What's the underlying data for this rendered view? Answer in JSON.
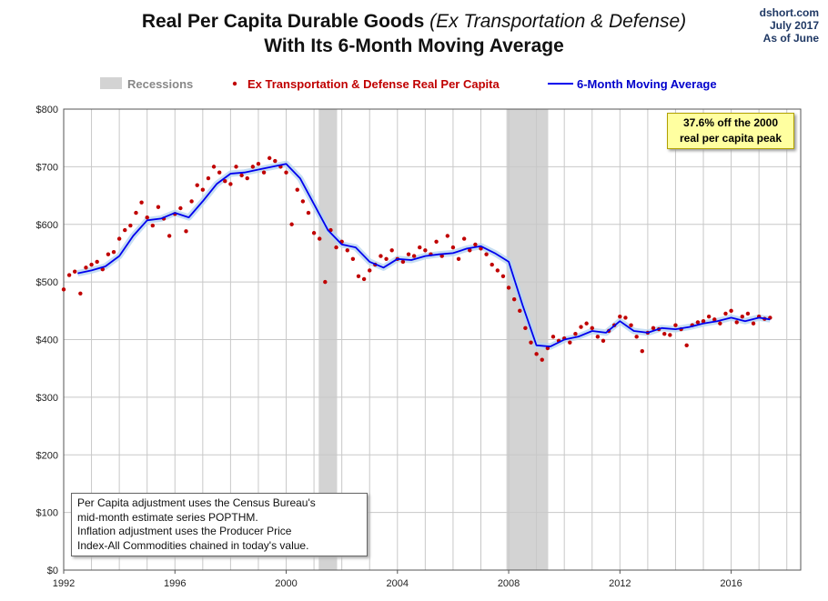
{
  "title": {
    "line1_plain": "Real Per Capita Durable Goods ",
    "line1_italic": "(Ex Transportation  & Defense)",
    "line2": "With Its 6-Month Moving Average"
  },
  "source": {
    "site": "dshort.com",
    "date": "July 2017",
    "as_of": "As of June"
  },
  "callout": {
    "line1": "37.6% off the 2000",
    "line2": "real per capita peak"
  },
  "note": {
    "lines": [
      "Per Capita adjustment uses the Census Bureau's",
      "mid-month estimate series POPTHM.",
      "Inflation adjustment uses the Producer Price",
      "Index-All Commodities chained in today's value."
    ]
  },
  "colors": {
    "dots": "#c00000",
    "line": "#0000ee",
    "recession": "#d3d3d3",
    "grid": "#c8c8c8"
  },
  "chart_data": {
    "type": "line",
    "title": "Real Per Capita Durable Goods (Ex Transportation  & Defense) With Its 6-Month Moving Average",
    "xlim": [
      1992,
      2018.5
    ],
    "ylim": [
      0,
      800
    ],
    "grid": true,
    "legend_position": "top",
    "x_ticks": [
      1992,
      1996,
      2000,
      2004,
      2008,
      2012,
      2016
    ],
    "y_ticks": [
      0,
      100,
      200,
      300,
      400,
      500,
      600,
      700,
      800
    ],
    "y_tick_labels": [
      "$0",
      "$100",
      "$200",
      "$300",
      "$400",
      "$500",
      "$600",
      "$700",
      "$800"
    ],
    "legend": [
      "Recessions",
      "Ex Transportation & Defense Real Per Capita",
      "6-Month Moving Average"
    ],
    "recessions": [
      [
        2001.17,
        2001.83
      ],
      [
        2007.92,
        2009.42
      ]
    ],
    "series": [
      {
        "name": "6-Month Moving Average",
        "style": "line",
        "x": [
          1992.5,
          1993.0,
          1993.5,
          1994.0,
          1994.5,
          1995.0,
          1995.5,
          1996.0,
          1996.5,
          1997.0,
          1997.5,
          1998.0,
          1998.5,
          1999.0,
          1999.5,
          2000.0,
          2000.5,
          2001.0,
          2001.5,
          2002.0,
          2002.5,
          2003.0,
          2003.5,
          2004.0,
          2004.5,
          2005.0,
          2005.5,
          2006.0,
          2006.5,
          2007.0,
          2007.5,
          2008.0,
          2008.5,
          2009.0,
          2009.5,
          2010.0,
          2010.5,
          2011.0,
          2011.5,
          2012.0,
          2012.5,
          2013.0,
          2013.5,
          2014.0,
          2014.5,
          2015.0,
          2015.5,
          2016.0,
          2016.5,
          2017.0,
          2017.4
        ],
        "values": [
          515,
          520,
          527,
          545,
          580,
          607,
          610,
          620,
          612,
          640,
          670,
          688,
          690,
          695,
          700,
          705,
          680,
          635,
          590,
          565,
          560,
          535,
          525,
          540,
          538,
          545,
          548,
          550,
          558,
          562,
          550,
          535,
          460,
          390,
          388,
          400,
          405,
          415,
          412,
          432,
          415,
          412,
          420,
          418,
          422,
          428,
          432,
          438,
          432,
          438,
          435
        ]
      },
      {
        "name": "Ex Transportation & Defense Real Per Capita",
        "style": "dots",
        "x": [
          1992.0,
          1992.2,
          1992.4,
          1992.6,
          1992.8,
          1993.0,
          1993.2,
          1993.4,
          1993.6,
          1993.8,
          1994.0,
          1994.2,
          1994.4,
          1994.6,
          1994.8,
          1995.0,
          1995.2,
          1995.4,
          1995.6,
          1995.8,
          1996.0,
          1996.2,
          1996.4,
          1996.6,
          1996.8,
          1997.0,
          1997.2,
          1997.4,
          1997.6,
          1997.8,
          1998.0,
          1998.2,
          1998.4,
          1998.6,
          1998.8,
          1999.0,
          1999.2,
          1999.4,
          1999.6,
          1999.8,
          2000.0,
          2000.2,
          2000.4,
          2000.6,
          2000.8,
          2001.0,
          2001.2,
          2001.4,
          2001.6,
          2001.8,
          2002.0,
          2002.2,
          2002.4,
          2002.6,
          2002.8,
          2003.0,
          2003.2,
          2003.4,
          2003.6,
          2003.8,
          2004.0,
          2004.2,
          2004.4,
          2004.6,
          2004.8,
          2005.0,
          2005.2,
          2005.4,
          2005.6,
          2005.8,
          2006.0,
          2006.2,
          2006.4,
          2006.6,
          2006.8,
          2007.0,
          2007.2,
          2007.4,
          2007.6,
          2007.8,
          2008.0,
          2008.2,
          2008.4,
          2008.6,
          2008.8,
          2009.0,
          2009.2,
          2009.4,
          2009.6,
          2009.8,
          2010.0,
          2010.2,
          2010.4,
          2010.6,
          2010.8,
          2011.0,
          2011.2,
          2011.4,
          2011.6,
          2011.8,
          2012.0,
          2012.2,
          2012.4,
          2012.6,
          2012.8,
          2013.0,
          2013.2,
          2013.4,
          2013.6,
          2013.8,
          2014.0,
          2014.2,
          2014.4,
          2014.6,
          2014.8,
          2015.0,
          2015.2,
          2015.4,
          2015.6,
          2015.8,
          2016.0,
          2016.2,
          2016.4,
          2016.6,
          2016.8,
          2017.0,
          2017.2,
          2017.4
        ],
        "values": [
          487,
          512,
          518,
          480,
          525,
          530,
          535,
          522,
          548,
          552,
          575,
          590,
          598,
          620,
          638,
          612,
          598,
          630,
          610,
          580,
          618,
          628,
          588,
          640,
          668,
          660,
          680,
          700,
          690,
          675,
          670,
          700,
          685,
          680,
          700,
          705,
          690,
          715,
          710,
          700,
          690,
          600,
          660,
          640,
          620,
          585,
          575,
          500,
          590,
          560,
          570,
          555,
          540,
          510,
          505,
          520,
          530,
          545,
          540,
          555,
          540,
          535,
          548,
          545,
          560,
          555,
          548,
          570,
          545,
          580,
          560,
          540,
          575,
          555,
          565,
          558,
          548,
          530,
          520,
          510,
          490,
          470,
          450,
          420,
          395,
          375,
          365,
          385,
          405,
          398,
          402,
          395,
          410,
          422,
          428,
          420,
          405,
          398,
          415,
          425,
          440,
          438,
          425,
          405,
          380,
          412,
          420,
          418,
          410,
          408,
          425,
          418,
          390,
          425,
          430,
          432,
          440,
          435,
          428,
          445,
          450,
          430,
          440,
          445,
          428,
          440,
          436,
          438
        ]
      }
    ]
  }
}
